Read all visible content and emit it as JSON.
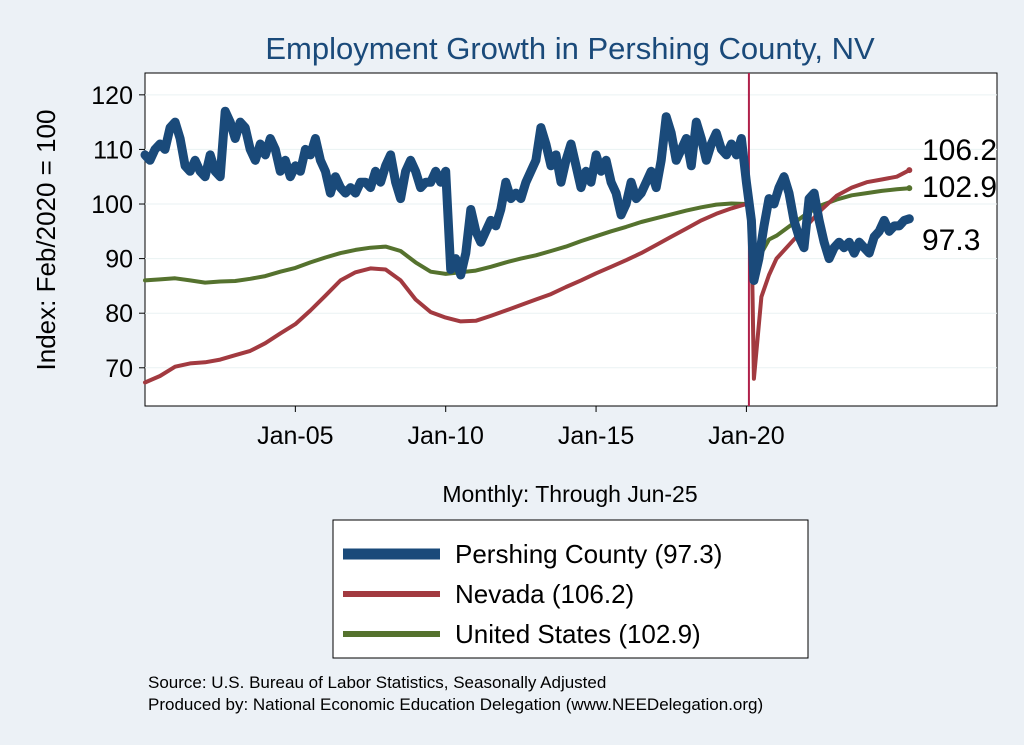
{
  "chart_data": {
    "type": "line",
    "title": "Employment Growth in Pershing  County, NV",
    "ylabel": "Index: Feb/2020 = 100",
    "xlabel": "Monthly: Through Jun-25",
    "ylim": [
      63,
      124
    ],
    "yticks": [
      70,
      80,
      90,
      100,
      110,
      120
    ],
    "xticks": [
      {
        "label": "Jan-05",
        "year": 2005
      },
      {
        "label": "Jan-10",
        "year": 2010
      },
      {
        "label": "Jan-15",
        "year": 2015
      },
      {
        "label": "Jan-20",
        "year": 2020
      }
    ],
    "xlim": [
      "2000-01",
      "2025-06"
    ],
    "reference_line": {
      "date": "2020-02",
      "color": "#b0204a"
    },
    "grid": true,
    "legend_position": "bottom",
    "series": [
      {
        "name": "Pershing  County (97.3)",
        "color": "#1a4a7a",
        "end_label": "97.3",
        "points": [
          [
            "2000-01",
            109
          ],
          [
            "2000-03",
            108
          ],
          [
            "2000-05",
            110
          ],
          [
            "2000-07",
            111
          ],
          [
            "2000-09",
            110
          ],
          [
            "2000-11",
            114
          ],
          [
            "2001-01",
            115
          ],
          [
            "2001-03",
            112
          ],
          [
            "2001-05",
            107
          ],
          [
            "2001-07",
            106
          ],
          [
            "2001-09",
            108
          ],
          [
            "2001-11",
            106
          ],
          [
            "2002-01",
            105
          ],
          [
            "2002-03",
            109
          ],
          [
            "2002-05",
            106
          ],
          [
            "2002-07",
            105
          ],
          [
            "2002-09",
            117
          ],
          [
            "2002-11",
            115
          ],
          [
            "2003-01",
            112
          ],
          [
            "2003-03",
            115
          ],
          [
            "2003-05",
            114
          ],
          [
            "2003-07",
            110
          ],
          [
            "2003-09",
            108
          ],
          [
            "2003-11",
            111
          ],
          [
            "2004-01",
            109
          ],
          [
            "2004-03",
            112
          ],
          [
            "2004-05",
            110
          ],
          [
            "2004-07",
            106
          ],
          [
            "2004-09",
            108
          ],
          [
            "2004-11",
            105
          ],
          [
            "2005-01",
            107
          ],
          [
            "2005-03",
            106
          ],
          [
            "2005-05",
            110
          ],
          [
            "2005-07",
            109
          ],
          [
            "2005-09",
            112
          ],
          [
            "2005-11",
            108
          ],
          [
            "2006-01",
            106
          ],
          [
            "2006-03",
            102
          ],
          [
            "2006-05",
            105
          ],
          [
            "2006-07",
            103
          ],
          [
            "2006-09",
            102
          ],
          [
            "2006-11",
            103
          ],
          [
            "2007-01",
            102
          ],
          [
            "2007-03",
            104
          ],
          [
            "2007-05",
            104
          ],
          [
            "2007-07",
            103
          ],
          [
            "2007-09",
            106
          ],
          [
            "2007-11",
            104
          ],
          [
            "2008-01",
            107
          ],
          [
            "2008-03",
            109
          ],
          [
            "2008-05",
            104
          ],
          [
            "2008-07",
            101
          ],
          [
            "2008-09",
            106
          ],
          [
            "2008-11",
            108
          ],
          [
            "2009-01",
            106
          ],
          [
            "2009-03",
            103
          ],
          [
            "2009-05",
            104
          ],
          [
            "2009-07",
            104
          ],
          [
            "2009-09",
            106
          ],
          [
            "2009-11",
            104
          ],
          [
            "2010-01",
            106
          ],
          [
            "2010-03",
            88
          ],
          [
            "2010-05",
            90
          ],
          [
            "2010-07",
            87
          ],
          [
            "2010-09",
            91
          ],
          [
            "2010-11",
            99
          ],
          [
            "2011-01",
            95
          ],
          [
            "2011-03",
            93
          ],
          [
            "2011-05",
            95
          ],
          [
            "2011-07",
            97
          ],
          [
            "2011-09",
            96
          ],
          [
            "2011-11",
            99
          ],
          [
            "2012-01",
            104
          ],
          [
            "2012-03",
            101
          ],
          [
            "2012-05",
            102
          ],
          [
            "2012-07",
            101
          ],
          [
            "2012-09",
            104
          ],
          [
            "2012-11",
            106
          ],
          [
            "2013-01",
            108
          ],
          [
            "2013-03",
            114
          ],
          [
            "2013-05",
            111
          ],
          [
            "2013-07",
            107
          ],
          [
            "2013-09",
            109
          ],
          [
            "2013-11",
            104
          ],
          [
            "2014-01",
            108
          ],
          [
            "2014-03",
            111
          ],
          [
            "2014-05",
            107
          ],
          [
            "2014-07",
            103
          ],
          [
            "2014-09",
            106
          ],
          [
            "2014-11",
            104
          ],
          [
            "2015-01",
            109
          ],
          [
            "2015-03",
            106
          ],
          [
            "2015-05",
            108
          ],
          [
            "2015-07",
            104
          ],
          [
            "2015-09",
            102
          ],
          [
            "2015-11",
            98
          ],
          [
            "2016-01",
            100
          ],
          [
            "2016-03",
            104
          ],
          [
            "2016-05",
            101
          ],
          [
            "2016-07",
            102
          ],
          [
            "2016-09",
            104
          ],
          [
            "2016-11",
            106
          ],
          [
            "2017-01",
            103
          ],
          [
            "2017-03",
            108
          ],
          [
            "2017-05",
            116
          ],
          [
            "2017-07",
            113
          ],
          [
            "2017-09",
            108
          ],
          [
            "2017-11",
            110
          ],
          [
            "2018-01",
            112
          ],
          [
            "2018-03",
            107
          ],
          [
            "2018-05",
            115
          ],
          [
            "2018-07",
            112
          ],
          [
            "2018-09",
            108
          ],
          [
            "2018-11",
            111
          ],
          [
            "2019-01",
            113
          ],
          [
            "2019-03",
            110
          ],
          [
            "2019-05",
            109
          ],
          [
            "2019-07",
            111
          ],
          [
            "2019-09",
            109
          ],
          [
            "2019-11",
            112
          ],
          [
            "2020-01",
            104
          ],
          [
            "2020-03",
            97
          ],
          [
            "2020-04",
            86
          ],
          [
            "2020-06",
            90
          ],
          [
            "2020-08",
            96
          ],
          [
            "2020-10",
            101
          ],
          [
            "2020-12",
            100
          ],
          [
            "2021-02",
            103
          ],
          [
            "2021-04",
            105
          ],
          [
            "2021-06",
            102
          ],
          [
            "2021-08",
            97
          ],
          [
            "2021-10",
            94
          ],
          [
            "2021-12",
            92
          ],
          [
            "2022-02",
            101
          ],
          [
            "2022-04",
            102
          ],
          [
            "2022-06",
            97
          ],
          [
            "2022-08",
            93
          ],
          [
            "2022-10",
            90
          ],
          [
            "2022-12",
            92
          ],
          [
            "2023-02",
            93
          ],
          [
            "2023-04",
            92
          ],
          [
            "2023-06",
            93
          ],
          [
            "2023-08",
            91
          ],
          [
            "2023-10",
            93
          ],
          [
            "2023-12",
            92
          ],
          [
            "2024-02",
            91
          ],
          [
            "2024-04",
            94
          ],
          [
            "2024-06",
            95
          ],
          [
            "2024-08",
            97
          ],
          [
            "2024-10",
            95
          ],
          [
            "2024-12",
            96
          ],
          [
            "2025-02",
            96
          ],
          [
            "2025-04",
            97
          ],
          [
            "2025-06",
            97.3
          ]
        ]
      },
      {
        "name": "Nevada (106.2)",
        "color": "#a23a40",
        "end_label": "106.2",
        "points": [
          [
            "2000-01",
            67.3
          ],
          [
            "2000-07",
            68.5
          ],
          [
            "2001-01",
            70.2
          ],
          [
            "2001-07",
            70.8
          ],
          [
            "2002-01",
            71
          ],
          [
            "2002-07",
            71.5
          ],
          [
            "2003-01",
            72.3
          ],
          [
            "2003-07",
            73.1
          ],
          [
            "2004-01",
            74.5
          ],
          [
            "2004-07",
            76.3
          ],
          [
            "2005-01",
            78
          ],
          [
            "2005-07",
            80.5
          ],
          [
            "2006-01",
            83.2
          ],
          [
            "2006-07",
            86
          ],
          [
            "2007-01",
            87.5
          ],
          [
            "2007-07",
            88.2
          ],
          [
            "2008-01",
            88
          ],
          [
            "2008-07",
            86
          ],
          [
            "2009-01",
            82.5
          ],
          [
            "2009-07",
            80.2
          ],
          [
            "2010-01",
            79.2
          ],
          [
            "2010-07",
            78.5
          ],
          [
            "2011-01",
            78.6
          ],
          [
            "2011-07",
            79.5
          ],
          [
            "2012-01",
            80.5
          ],
          [
            "2012-07",
            81.5
          ],
          [
            "2013-01",
            82.5
          ],
          [
            "2013-07",
            83.5
          ],
          [
            "2014-01",
            84.8
          ],
          [
            "2014-07",
            86
          ],
          [
            "2015-01",
            87.3
          ],
          [
            "2015-07",
            88.5
          ],
          [
            "2016-01",
            89.7
          ],
          [
            "2016-07",
            91
          ],
          [
            "2017-01",
            92.5
          ],
          [
            "2017-07",
            94
          ],
          [
            "2018-01",
            95.5
          ],
          [
            "2018-07",
            97
          ],
          [
            "2019-01",
            98.2
          ],
          [
            "2019-07",
            99.2
          ],
          [
            "2020-01",
            100
          ],
          [
            "2020-02",
            100
          ],
          [
            "2020-03",
            96
          ],
          [
            "2020-04",
            68
          ],
          [
            "2020-05",
            73
          ],
          [
            "2020-07",
            83
          ],
          [
            "2020-10",
            87
          ],
          [
            "2021-01",
            90
          ],
          [
            "2021-07",
            93
          ],
          [
            "2022-01",
            96
          ],
          [
            "2022-07",
            99
          ],
          [
            "2023-01",
            101.5
          ],
          [
            "2023-07",
            103
          ],
          [
            "2024-01",
            104
          ],
          [
            "2024-07",
            104.5
          ],
          [
            "2025-01",
            105
          ],
          [
            "2025-06",
            106.2
          ]
        ]
      },
      {
        "name": "United States (102.9)",
        "color": "#55722e",
        "end_label": "102.9",
        "points": [
          [
            "2000-01",
            86
          ],
          [
            "2000-07",
            86.2
          ],
          [
            "2001-01",
            86.4
          ],
          [
            "2001-07",
            86
          ],
          [
            "2002-01",
            85.6
          ],
          [
            "2002-07",
            85.8
          ],
          [
            "2003-01",
            85.9
          ],
          [
            "2003-07",
            86.3
          ],
          [
            "2004-01",
            86.8
          ],
          [
            "2004-07",
            87.6
          ],
          [
            "2005-01",
            88.3
          ],
          [
            "2005-07",
            89.3
          ],
          [
            "2006-01",
            90.2
          ],
          [
            "2006-07",
            91
          ],
          [
            "2007-01",
            91.6
          ],
          [
            "2007-07",
            92
          ],
          [
            "2008-01",
            92.2
          ],
          [
            "2008-07",
            91.4
          ],
          [
            "2009-01",
            89.3
          ],
          [
            "2009-07",
            87.6
          ],
          [
            "2010-01",
            87.2
          ],
          [
            "2010-07",
            87.5
          ],
          [
            "2011-01",
            87.8
          ],
          [
            "2011-07",
            88.5
          ],
          [
            "2012-01",
            89.3
          ],
          [
            "2012-07",
            90
          ],
          [
            "2013-01",
            90.6
          ],
          [
            "2013-07",
            91.4
          ],
          [
            "2014-01",
            92.2
          ],
          [
            "2014-07",
            93.2
          ],
          [
            "2015-01",
            94.1
          ],
          [
            "2015-07",
            95
          ],
          [
            "2016-01",
            95.8
          ],
          [
            "2016-07",
            96.7
          ],
          [
            "2017-01",
            97.4
          ],
          [
            "2017-07",
            98.1
          ],
          [
            "2018-01",
            98.8
          ],
          [
            "2018-07",
            99.4
          ],
          [
            "2019-01",
            99.9
          ],
          [
            "2019-07",
            100.1
          ],
          [
            "2020-01",
            100
          ],
          [
            "2020-02",
            100
          ],
          [
            "2020-03",
            99
          ],
          [
            "2020-04",
            85.5
          ],
          [
            "2020-05",
            88
          ],
          [
            "2020-07",
            91
          ],
          [
            "2020-10",
            93.5
          ],
          [
            "2021-01",
            94.2
          ],
          [
            "2021-07",
            96.2
          ],
          [
            "2022-01",
            98.2
          ],
          [
            "2022-07",
            99.8
          ],
          [
            "2023-01",
            100.8
          ],
          [
            "2023-07",
            101.6
          ],
          [
            "2024-01",
            102
          ],
          [
            "2024-07",
            102.4
          ],
          [
            "2025-01",
            102.7
          ],
          [
            "2025-06",
            102.9
          ]
        ]
      }
    ]
  },
  "footer": {
    "source": "Source: U.S. Bureau of Labor Statistics, Seasonally Adjusted",
    "produced": "Produced by: National Economic Education Delegation (www.NEEDelegation.org)"
  }
}
